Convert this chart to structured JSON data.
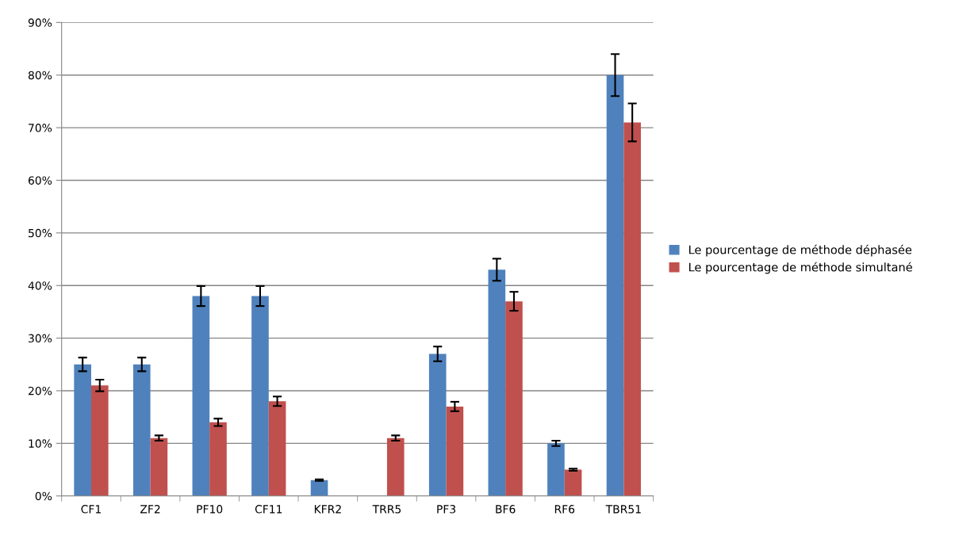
{
  "chart_data": {
    "type": "bar",
    "categories": [
      "CF1",
      "ZF2",
      "PF10",
      "CF11",
      "KFR2",
      "TRR5",
      "PF3",
      "BF6",
      "RF6",
      "TBR51"
    ],
    "series": [
      {
        "name": "Le pourcentage de méthode déphasée",
        "color": "#4f81bd",
        "values": [
          25,
          25,
          38,
          38,
          3,
          null,
          27,
          43,
          10,
          80
        ],
        "errors": [
          1.3,
          1.3,
          1.9,
          1.9,
          0.15,
          null,
          1.4,
          2.1,
          0.5,
          4
        ]
      },
      {
        "name": "Le pourcentage de méthode simultané",
        "color": "#c0504d",
        "values": [
          21,
          11,
          14,
          18,
          null,
          11,
          17,
          37,
          5,
          71
        ],
        "errors": [
          1.1,
          0.5,
          0.7,
          0.9,
          null,
          0.5,
          0.9,
          1.8,
          0.2,
          3.6
        ]
      }
    ],
    "ylim": [
      0,
      90
    ],
    "yticks": [
      {
        "value": 0,
        "label": "0%"
      },
      {
        "value": 10,
        "label": "10%"
      },
      {
        "value": 20,
        "label": "20%"
      },
      {
        "value": 30,
        "label": "30%"
      },
      {
        "value": 40,
        "label": "40%"
      },
      {
        "value": 50,
        "label": "50%"
      },
      {
        "value": 60,
        "label": "60%"
      },
      {
        "value": 70,
        "label": "70%"
      },
      {
        "value": 80,
        "label": "80%"
      },
      {
        "value": 90,
        "label": "90%"
      }
    ],
    "grid": "y",
    "legend": "right"
  }
}
